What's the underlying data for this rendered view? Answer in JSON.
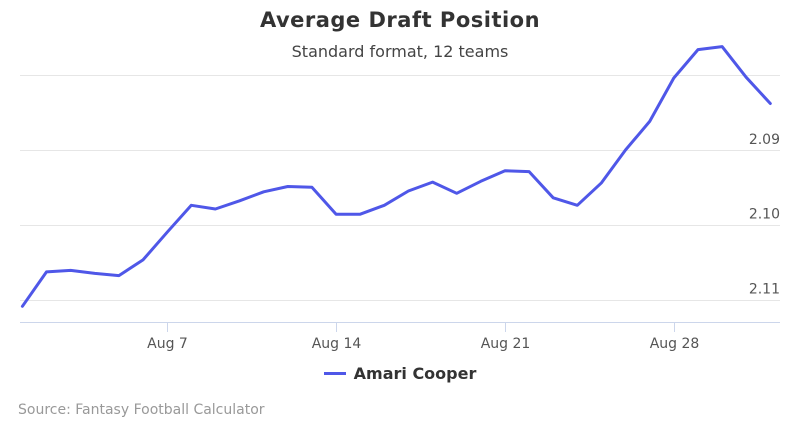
{
  "title": "Average Draft Position",
  "subtitle": "Standard format, 12 teams",
  "credits": "Source: Fantasy Football Calculator",
  "colors": {
    "series": "#4f57e8",
    "grid": "#e6e6e6",
    "axis_text": "#555555"
  },
  "chart_data": {
    "type": "line",
    "title": "Average Draft Position",
    "subtitle": "Standard format, 12 teams",
    "xlabel": "",
    "ylabel": "",
    "grid": true,
    "legend_position": "bottom-center",
    "x_ticks": [
      {
        "label": "Aug 7",
        "day": 7
      },
      {
        "label": "Aug 14",
        "day": 14
      },
      {
        "label": "Aug 21",
        "day": 21
      },
      {
        "label": "Aug 28",
        "day": 28
      }
    ],
    "y_ticks": [
      2.09,
      2.1,
      2.11
    ],
    "y_reversed": true,
    "ylim": [
      2.082,
      2.113
    ],
    "xlim": [
      0.9,
      32.4
    ],
    "series": [
      {
        "name": "Amari Cooper",
        "color": "#4f57e8",
        "x": [
          1,
          2,
          3,
          4,
          5,
          6,
          7,
          8,
          9,
          10,
          11,
          12,
          13,
          14,
          15,
          16,
          17,
          18,
          19,
          20,
          21,
          22,
          23,
          24,
          25,
          26,
          27,
          28,
          29,
          30,
          31,
          32
        ],
        "y": [
          2.1109,
          2.1063,
          2.1061,
          2.1065,
          2.1068,
          2.1047,
          2.101,
          2.0974,
          2.0979,
          2.0968,
          2.0956,
          2.0949,
          2.095,
          2.0986,
          2.0986,
          2.0974,
          2.0955,
          2.0943,
          2.0958,
          2.0942,
          2.0928,
          2.0929,
          2.0964,
          2.0974,
          2.0944,
          2.09,
          2.0862,
          2.0804,
          2.0766,
          2.0762,
          2.0803,
          2.0838
        ]
      }
    ]
  }
}
